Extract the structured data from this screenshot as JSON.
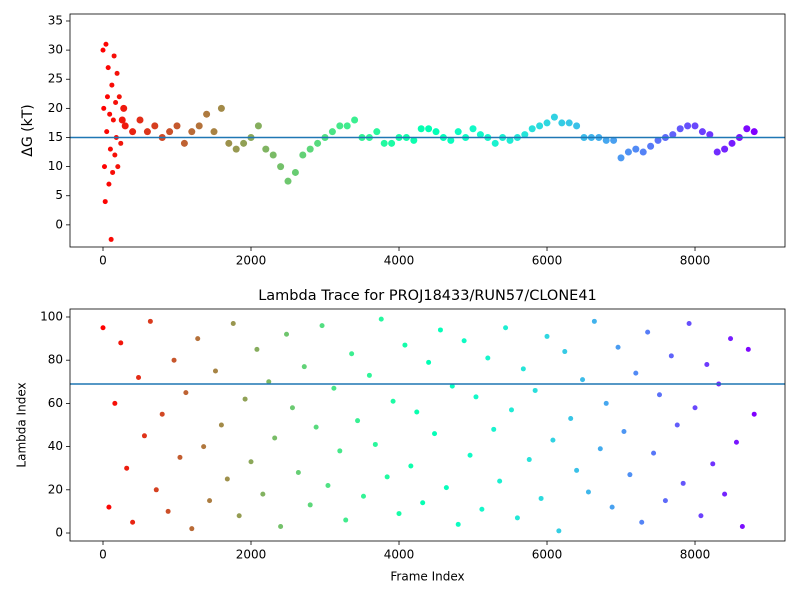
{
  "chart_data": [
    {
      "type": "scatter",
      "ylabel": "ΔG (kT)",
      "x": [
        0,
        10,
        20,
        30,
        40,
        50,
        60,
        70,
        80,
        90,
        100,
        110,
        120,
        130,
        140,
        150,
        160,
        170,
        180,
        190,
        200,
        220,
        240,
        260,
        280,
        300,
        400,
        500,
        600,
        700,
        800,
        900,
        1000,
        1100,
        1200,
        1300,
        1400,
        1500,
        1600,
        1700,
        1800,
        1900,
        2000,
        2100,
        2200,
        2300,
        2400,
        2500,
        2600,
        2700,
        2800,
        2900,
        3000,
        3100,
        3200,
        3300,
        3400,
        3500,
        3600,
        3700,
        3800,
        3900,
        4000,
        4100,
        4200,
        4300,
        4400,
        4500,
        4600,
        4700,
        4800,
        4900,
        5000,
        5100,
        5200,
        5300,
        5400,
        5500,
        5600,
        5700,
        5800,
        5900,
        6000,
        6100,
        6200,
        6300,
        6400,
        6500,
        6600,
        6700,
        6800,
        6900,
        7000,
        7100,
        7200,
        7300,
        7400,
        7500,
        7600,
        7700,
        7800,
        7900,
        8000,
        8100,
        8200,
        8300,
        8400,
        8500,
        8600,
        8700,
        8800
      ],
      "values": [
        30,
        20,
        10,
        4,
        31,
        16,
        22,
        27,
        7,
        19,
        13,
        -2.5,
        24,
        9,
        18,
        29,
        12,
        21,
        15,
        26,
        10,
        22,
        14,
        18,
        20,
        17,
        16,
        18,
        16,
        17,
        15,
        16,
        17,
        14,
        16,
        17,
        19,
        16,
        20,
        14,
        13,
        14,
        15,
        17,
        13,
        12,
        10,
        7.5,
        9,
        12,
        13,
        14,
        15,
        16,
        17,
        17,
        18,
        15,
        15,
        16,
        14,
        14,
        15,
        15,
        14.5,
        16.5,
        16.5,
        16,
        15,
        14.5,
        16,
        15,
        16.5,
        15.5,
        15,
        14,
        15,
        14.5,
        15,
        15.5,
        16.5,
        17,
        17.5,
        18.5,
        17.5,
        17.5,
        17,
        15,
        15,
        15,
        14.5,
        14.5,
        11.5,
        12.5,
        13,
        12.5,
        13.5,
        14.5,
        15,
        15.5,
        16.5,
        17,
        17,
        16,
        15.5,
        12.5,
        13,
        14,
        15,
        16.5,
        16
      ],
      "colormap": "rainbow_r",
      "hline": 15,
      "hline_color": "#1f77b4",
      "xlim": [
        -446,
        9216
      ],
      "xticks": [
        0,
        2000,
        4000,
        6000,
        8000
      ],
      "ylim": [
        -3.8,
        36.2
      ],
      "yticks": [
        0,
        5,
        10,
        15,
        20,
        25,
        30,
        35
      ]
    },
    {
      "type": "scatter",
      "title": "Lambda Trace for PROJ18433/RUN57/CLONE41",
      "xlabel": "Frame Index",
      "ylabel": "Lambda Index",
      "x": [
        0,
        80,
        160,
        240,
        320,
        400,
        480,
        560,
        640,
        720,
        800,
        880,
        960,
        1040,
        1120,
        1200,
        1280,
        1360,
        1440,
        1520,
        1600,
        1680,
        1760,
        1840,
        1920,
        2000,
        2080,
        2160,
        2240,
        2320,
        2400,
        2480,
        2560,
        2640,
        2720,
        2800,
        2880,
        2960,
        3040,
        3120,
        3200,
        3280,
        3360,
        3440,
        3520,
        3600,
        3680,
        3760,
        3840,
        3920,
        4000,
        4080,
        4160,
        4240,
        4320,
        4400,
        4480,
        4560,
        4640,
        4720,
        4800,
        4880,
        4960,
        5040,
        5120,
        5200,
        5280,
        5360,
        5440,
        5520,
        5600,
        5680,
        5760,
        5840,
        5920,
        6000,
        6080,
        6160,
        6240,
        6320,
        6400,
        6480,
        6560,
        6640,
        6720,
        6800,
        6880,
        6960,
        7040,
        7120,
        7200,
        7280,
        7360,
        7440,
        7520,
        7600,
        7680,
        7760,
        7840,
        7920,
        8000,
        8080,
        8160,
        8240,
        8320,
        8400,
        8480,
        8560,
        8640,
        8720,
        8800
      ],
      "values": [
        95,
        12,
        60,
        88,
        30,
        5,
        72,
        45,
        98,
        20,
        55,
        10,
        80,
        35,
        65,
        2,
        90,
        40,
        15,
        75,
        50,
        25,
        97,
        8,
        62,
        33,
        85,
        18,
        70,
        44,
        3,
        92,
        58,
        28,
        77,
        13,
        49,
        96,
        22,
        67,
        38,
        6,
        83,
        52,
        17,
        73,
        41,
        99,
        26,
        61,
        9,
        87,
        31,
        56,
        14,
        79,
        46,
        94,
        21,
        68,
        4,
        89,
        36,
        63,
        11,
        81,
        48,
        24,
        95,
        57,
        7,
        76,
        34,
        66,
        16,
        91,
        43,
        1,
        84,
        53,
        29,
        71,
        19,
        98,
        39,
        60,
        12,
        86,
        47,
        27,
        74,
        5,
        93,
        37,
        64,
        15,
        82,
        50,
        23,
        97,
        58,
        8,
        78,
        32,
        69,
        18,
        90,
        42,
        3,
        85,
        55
      ],
      "colormap": "rainbow_r",
      "hline": 69,
      "hline_color": "#1f77b4",
      "xlim": [
        -446,
        9216
      ],
      "xticks": [
        0,
        2000,
        4000,
        6000,
        8000
      ],
      "ylim": [
        -3.7,
        103.7
      ],
      "yticks": [
        0,
        20,
        40,
        60,
        80,
        100
      ]
    }
  ]
}
